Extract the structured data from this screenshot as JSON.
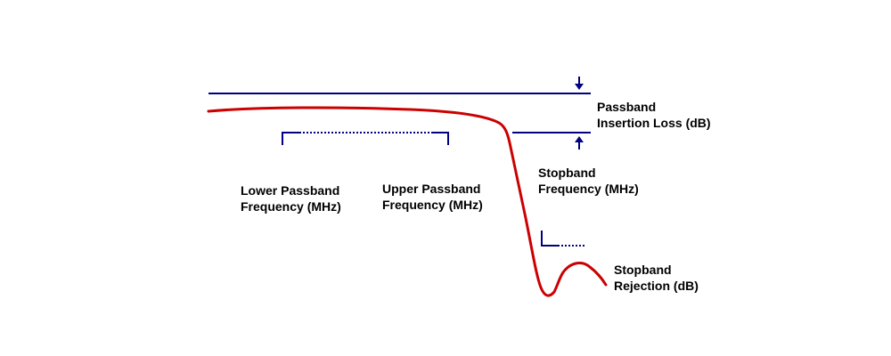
{
  "labels": {
    "passband_insertion_loss": [
      "Passband",
      "Insertion Loss (dB)"
    ],
    "lower_passband_frequency": [
      "Lower Passband",
      "Frequency (MHz)"
    ],
    "upper_passband_frequency": [
      "Upper Passband",
      "Frequency (MHz)"
    ],
    "stopband_frequency": [
      "Stopband",
      "Frequency (MHz)"
    ],
    "stopband_rejection": [
      "Stopband",
      "Rejection (dB)"
    ]
  },
  "colors": {
    "response_curve": "#cc0000",
    "reference_lines": "#000080",
    "text": "#000000",
    "background": "#ffffff"
  },
  "icons": {
    "down_arrow": "arrow-down-icon",
    "up_arrow": "arrow-up-icon"
  }
}
